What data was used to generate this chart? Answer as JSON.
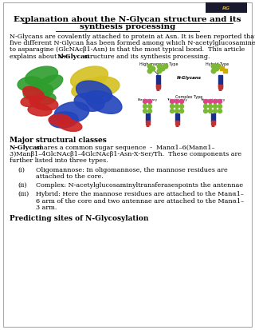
{
  "bg_color": "#ffffff",
  "border_color": "#aaaaaa",
  "title_line1": "Explanation about the N-Glycan structure and its",
  "title_line2": "synthesis processing",
  "title_fontsize": 7.5,
  "logo_bg": "#1a1a2e",
  "body_fontsize": 5.8,
  "section1_title": "Major structural classes",
  "section_title_fontsize": 6.5,
  "section1_body_lines": [
    "N-Glycan shares a common sugar sequence  -  Manα1–6(Manα1–",
    "3)Manβ1–4GlcNAcβ1–4GlcNAcβ1-Asn-X-Ser/Th.  These components are",
    "further listed into three types."
  ],
  "list_fontsize": 5.8,
  "list_items": [
    [
      "(i)",
      "Oligomannose: In oligomannose, the mannose residues are",
      "attached to the core."
    ],
    [
      "(ii)",
      "Complex: N-acetylglucosaminyltransferasespoints the antennae"
    ],
    [
      "(iii)",
      "Hybrid: Here the mannose residues are attached to the Manα1–",
      "6 arm of the core and two antennae are attached to the Manα1–",
      "3 arm."
    ]
  ],
  "section2_title": "Predicting sites of N-Glycosylation"
}
